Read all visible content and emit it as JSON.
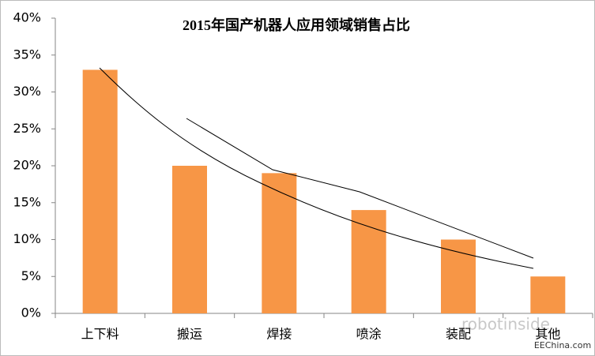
{
  "chart_data": {
    "type": "bar",
    "title": "2015年国产机器人应用领域销售占比",
    "categories": [
      "上下料",
      "搬运",
      "焊接",
      "喷涂",
      "装配",
      "其他"
    ],
    "values": [
      33,
      20,
      19,
      14,
      10,
      5
    ],
    "color": "#f79646",
    "ylim": [
      0,
      40
    ],
    "yticks": [
      {
        "value": 0,
        "label": "0%"
      },
      {
        "value": 5,
        "label": "5%"
      },
      {
        "value": 10,
        "label": "10%"
      },
      {
        "value": 15,
        "label": "15%"
      },
      {
        "value": 20,
        "label": "20%"
      },
      {
        "value": 25,
        "label": "25%"
      },
      {
        "value": 30,
        "label": "30%"
      },
      {
        "value": 35,
        "label": "35%"
      },
      {
        "value": 40,
        "label": "40%"
      }
    ],
    "grid": false
  },
  "watermark": {
    "logo": "robotinside",
    "site": "EEChina.com"
  }
}
